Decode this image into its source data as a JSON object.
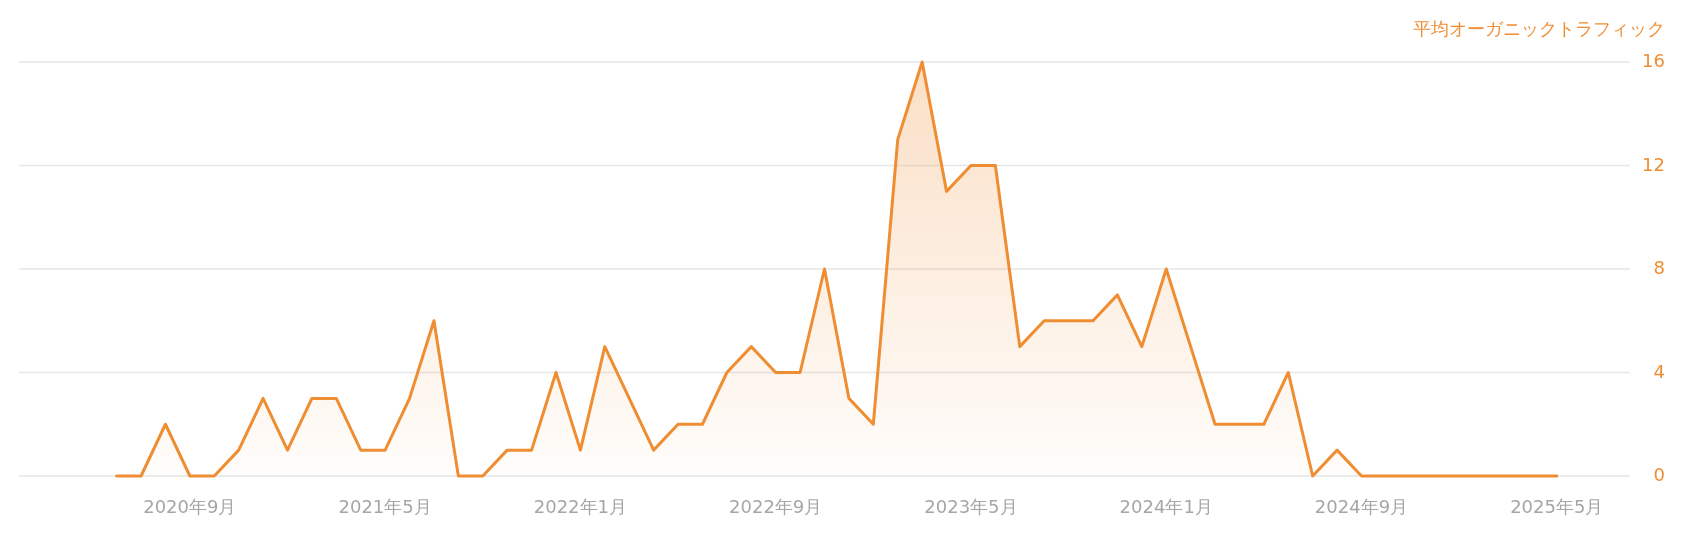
{
  "chart_data": {
    "type": "area",
    "ylabel": "平均オーガニックトラフィック",
    "color": "#ef8d32",
    "x": [
      "2020-06",
      "2020-07",
      "2020-08",
      "2020-09",
      "2020-10",
      "2020-11",
      "2020-12",
      "2021-01",
      "2021-02",
      "2021-03",
      "2021-04",
      "2021-05",
      "2021-06",
      "2021-07",
      "2021-08",
      "2021-09",
      "2021-10",
      "2021-11",
      "2021-12",
      "2022-01",
      "2022-02",
      "2022-03",
      "2022-04",
      "2022-05",
      "2022-06",
      "2022-07",
      "2022-08",
      "2022-09",
      "2022-10",
      "2022-11",
      "2022-12",
      "2023-01",
      "2023-02",
      "2023-03",
      "2023-04",
      "2023-05",
      "2023-06",
      "2023-07",
      "2023-08",
      "2023-09",
      "2023-10",
      "2023-11",
      "2023-12",
      "2024-01",
      "2024-02",
      "2024-03",
      "2024-04",
      "2024-05",
      "2024-06",
      "2024-07",
      "2024-08",
      "2024-09",
      "2024-10",
      "2024-11",
      "2024-12",
      "2025-01",
      "2025-02",
      "2025-03",
      "2025-04",
      "2025-05"
    ],
    "values": [
      0,
      0,
      2,
      0,
      0,
      1,
      3,
      1,
      3,
      3,
      1,
      1,
      3,
      6,
      0,
      0,
      1,
      1,
      4,
      1,
      5,
      3,
      1,
      2,
      2,
      4,
      5,
      4,
      4,
      8,
      3,
      2,
      13,
      16,
      11,
      12,
      12,
      5,
      6,
      6,
      6,
      7,
      5,
      8,
      5,
      2,
      2,
      2,
      4,
      0,
      1,
      0,
      0,
      0,
      0,
      0,
      0,
      0,
      0,
      0
    ],
    "xlim": [
      "2020-02",
      "2025-08"
    ],
    "xticks": [
      {
        "value": "2020-09",
        "label": "2020年9月"
      },
      {
        "value": "2021-05",
        "label": "2021年5月"
      },
      {
        "value": "2022-01",
        "label": "2022年1月"
      },
      {
        "value": "2022-09",
        "label": "2022年9月"
      },
      {
        "value": "2023-05",
        "label": "2023年5月"
      },
      {
        "value": "2024-01",
        "label": "2024年1月"
      },
      {
        "value": "2024-09",
        "label": "2024年9月"
      },
      {
        "value": "2025-05",
        "label": "2025年5月"
      }
    ],
    "ylim": [
      0,
      16
    ],
    "yticks": [
      0,
      4,
      8,
      12,
      16
    ],
    "grid": "y"
  }
}
